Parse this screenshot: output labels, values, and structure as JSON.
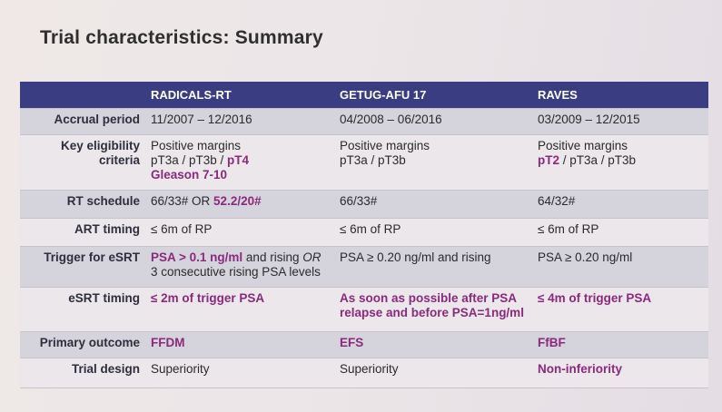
{
  "title": "Trial characteristics: Summary",
  "header": [
    "",
    "RADICALS-RT",
    "GETUG-AFU 17",
    "RAVES"
  ],
  "rows": {
    "accrual": {
      "label": "Accrual period",
      "c1": "11/2007 – 12/2016",
      "c2": "04/2008 – 06/2016",
      "c3": "03/2009 – 12/2015"
    },
    "eligibility": {
      "label_1": "Key eligibility",
      "label_2": "criteria",
      "c1_line1": "Positive margins",
      "c1_line2_a": "pT3a / pT3b / ",
      "c1_line2_b": "pT4",
      "c1_line3": "Gleason 7-10",
      "c2_line1": "Positive margins",
      "c2_line2": "pT3a / pT3b",
      "c3_line1": "Positive margins",
      "c3_line2_a": "pT2",
      "c3_line2_b": " / pT3a / pT3b"
    },
    "rt_schedule": {
      "label": "RT schedule",
      "c1_a": "66/33# OR ",
      "c1_b": "52.2/20#",
      "c2": "66/33#",
      "c3": "64/32#"
    },
    "art_timing": {
      "label": "ART timing",
      "c1": "≤ 6m of RP",
      "c2": "≤ 6m of RP",
      "c3": "≤ 6m of RP"
    },
    "trigger": {
      "label": "Trigger for eSRT",
      "c1_a": "PSA > 0.1 ng/ml",
      "c1_b": " and rising ",
      "c1_c": "OR",
      "c1_line2": "3 consecutive rising PSA levels",
      "c2": "PSA ≥ 0.20 ng/ml and rising",
      "c3": "PSA ≥ 0.20 ng/ml"
    },
    "esrt_timing": {
      "label": "eSRT timing",
      "c1": "≤ 2m of trigger PSA",
      "c2_line1": "As soon as possible after PSA",
      "c2_line2": "relapse and before PSA=1ng/ml",
      "c3": "≤ 4m of trigger PSA"
    },
    "primary": {
      "label": "Primary outcome",
      "c1": "FFDM",
      "c2": "EFS",
      "c3": "FfBF"
    },
    "design": {
      "label": "Trial design",
      "c1": "Superiority",
      "c2": "Superiority",
      "c3": "Non-inferiority"
    }
  },
  "colors": {
    "header_bg": "#3a3d82",
    "highlight": "#8b2a7d",
    "row_shade": "#d5d3db"
  }
}
